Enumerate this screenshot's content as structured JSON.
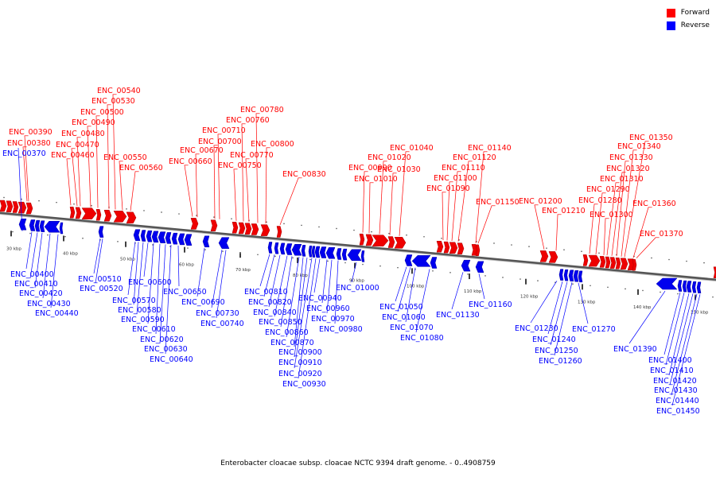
{
  "legend": {
    "items": [
      {
        "label": "Forward",
        "color": "#ff0000"
      },
      {
        "label": "Reverse",
        "color": "#0000ff"
      }
    ]
  },
  "caption": "Enterobacter cloacae subsp. cloacae NCTC 9394 draft genome. - 0..4908759",
  "colors": {
    "forward": "#ff0000",
    "reverse": "#0000ff",
    "backbone": "#808080"
  },
  "scale": {
    "ticks": [
      "30 kbp",
      "40 kbp",
      "50 kbp",
      "60 kbp",
      "70 kbp",
      "80 kbp",
      "90 kbp",
      "100 kbp",
      "110 kbp",
      "120 kbp",
      "130 kbp",
      "140 kbp",
      "150 kbp"
    ]
  },
  "genes": {
    "forward": [
      "ENC_00380",
      "ENC_00390",
      "ENC_00460",
      "ENC_00470",
      "ENC_00480",
      "ENC_00490",
      "ENC_00500",
      "ENC_00530",
      "ENC_00540",
      "ENC_00550",
      "ENC_00560",
      "ENC_00660",
      "ENC_00670",
      "ENC_00700",
      "ENC_00710",
      "ENC_00750",
      "ENC_00760",
      "ENC_00770",
      "ENC_00780",
      "ENC_00800",
      "ENC_00830",
      "ENC_00990",
      "ENC_01010",
      "ENC_01020",
      "ENC_01030",
      "ENC_01040",
      "ENC_01090",
      "ENC_01100",
      "ENC_01110",
      "ENC_01120",
      "ENC_01140",
      "ENC_01150",
      "ENC_01200",
      "ENC_01210",
      "ENC_01280",
      "ENC_01290",
      "ENC_01300",
      "ENC_01310",
      "ENC_01320",
      "ENC_01330",
      "ENC_01340",
      "ENC_01350",
      "ENC_01360",
      "ENC_01370"
    ],
    "reverse": [
      "ENC_00370",
      "ENC_00400",
      "ENC_00410",
      "ENC_00420",
      "ENC_00430",
      "ENC_00440",
      "ENC_00510",
      "ENC_00520",
      "ENC_00570",
      "ENC_00580",
      "ENC_00590",
      "ENC_00600",
      "ENC_00610",
      "ENC_00620",
      "ENC_00630",
      "ENC_00640",
      "ENC_00650",
      "ENC_00690",
      "ENC_00730",
      "ENC_00740",
      "ENC_00810",
      "ENC_00820",
      "ENC_00840",
      "ENC_00850",
      "ENC_00860",
      "ENC_00870",
      "ENC_00900",
      "ENC_00910",
      "ENC_00920",
      "ENC_00930",
      "ENC_00940",
      "ENC_00960",
      "ENC_00970",
      "ENC_00980",
      "ENC_01000",
      "ENC_01050",
      "ENC_01060",
      "ENC_01070",
      "ENC_01080",
      "ENC_01130",
      "ENC_01160",
      "ENC_01230",
      "ENC_01240",
      "ENC_01250",
      "ENC_01260",
      "ENC_01270",
      "ENC_01390",
      "ENC_01400",
      "ENC_01410",
      "ENC_01420",
      "ENC_01430",
      "ENC_01440",
      "ENC_01450"
    ]
  }
}
